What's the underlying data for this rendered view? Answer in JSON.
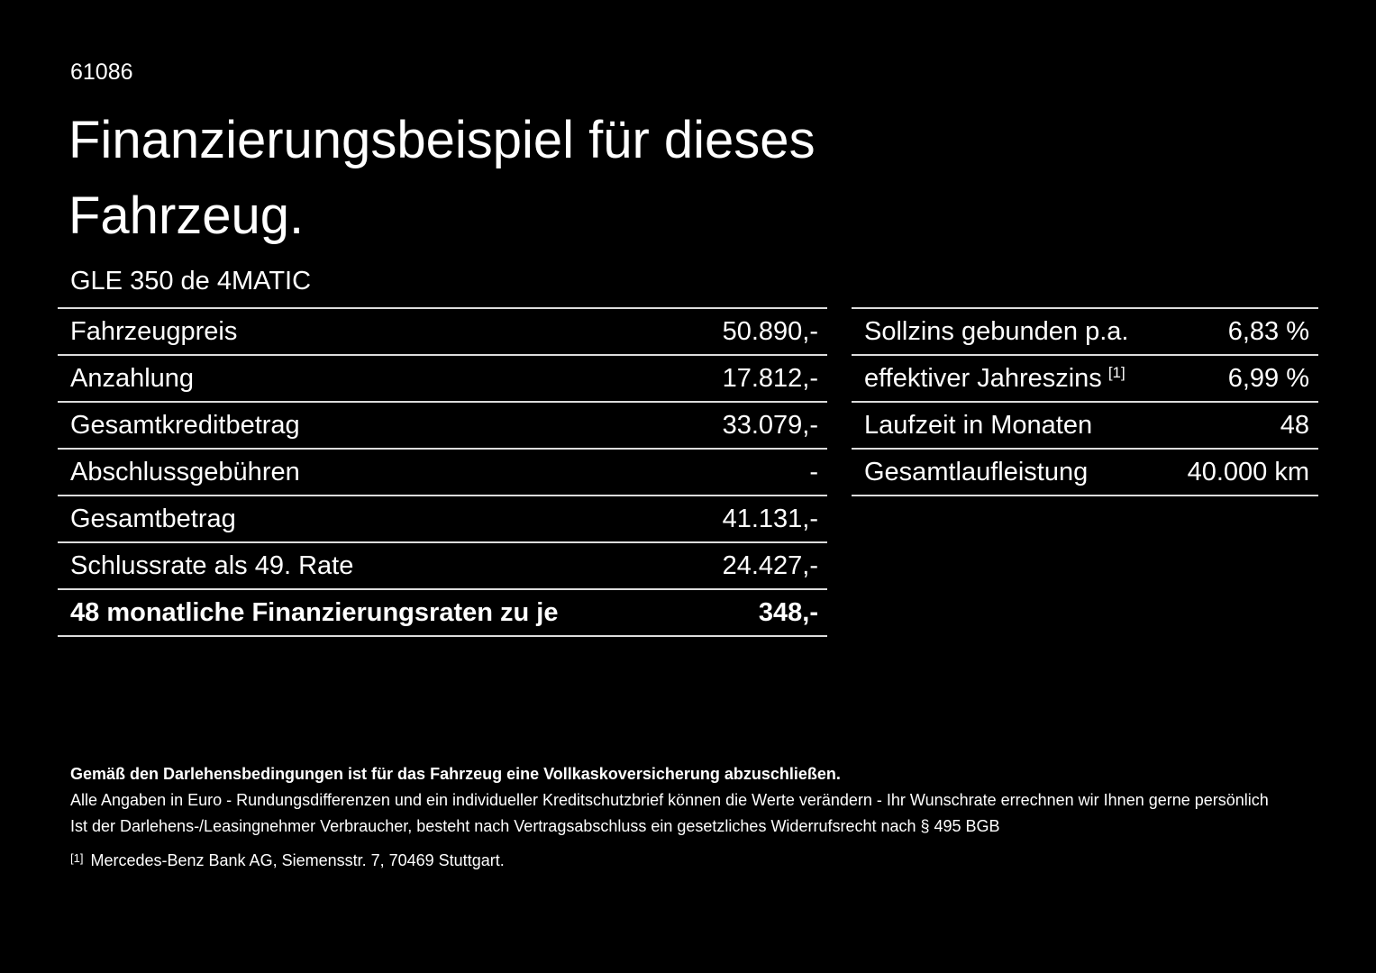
{
  "colors": {
    "background": "#000000",
    "text": "#ffffff",
    "divider": "#dcdcdc"
  },
  "header": {
    "code": "61086",
    "title": "Finanzierungsbeispiel für dieses Fahrzeug.",
    "vehicle": "GLE 350 de 4MATIC"
  },
  "finance_table": {
    "rows": [
      {
        "label": "Fahrzeugpreis",
        "value": "50.890,-"
      },
      {
        "label": "Anzahlung",
        "value": "17.812,-"
      },
      {
        "label": "Gesamtkreditbetrag",
        "value": "33.079,-"
      },
      {
        "label": "Abschlussgebühren",
        "value": "-"
      },
      {
        "label": "Gesamtbetrag",
        "value": "41.131,-"
      },
      {
        "label": "Schlussrate als 49. Rate",
        "value": "24.427,-"
      },
      {
        "label": "48 monatliche Finanzierungsraten zu je",
        "value": "348,-"
      }
    ]
  },
  "conditions_table": {
    "rows": [
      {
        "label": "Sollzins gebunden p.a.",
        "value": "6,83 %"
      },
      {
        "label": "effektiver Jahreszins",
        "footnote_ref": "[1]",
        "value": "6,99 %"
      },
      {
        "label": "Laufzeit in Monaten",
        "value": "48"
      },
      {
        "label": "Gesamtlaufleistung",
        "value": "40.000 km"
      }
    ]
  },
  "footer": {
    "insurance_note": "Gemäß den Darlehensbedingungen ist für das Fahrzeug eine Vollkaskoversicherung abzuschließen.",
    "disclaimer_line1": "Alle Angaben in Euro - Rundungsdifferenzen und ein individueller Kreditschutzbrief können die Werte verändern - Ihr Wunschrate errechnen wir Ihnen gerne persönlich",
    "disclaimer_line2": "Ist der Darlehens-/Leasingnehmer Verbraucher, besteht nach Vertragsabschluss ein gesetzliches Widerrufsrecht nach § 495 BGB",
    "footnote_ref": "[1]",
    "footnote_text": "Mercedes-Benz Bank AG, Siemensstr. 7, 70469 Stuttgart."
  }
}
